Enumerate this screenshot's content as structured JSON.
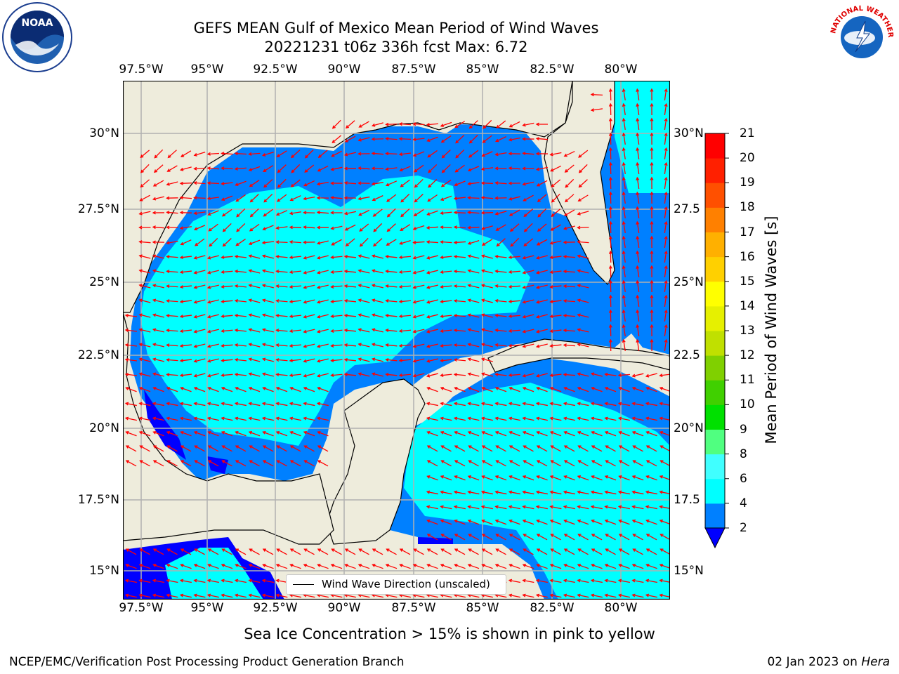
{
  "title": {
    "line1": "GEFS MEAN Gulf of Mexico Mean Period of Wind Waves",
    "line2": "20221231 t06z 336h fcst   Max: 6.72"
  },
  "axes": {
    "lon_labels": [
      "97.5°W",
      "95°W",
      "92.5°W",
      "90°W",
      "87.5°W",
      "85°W",
      "82.5°W",
      "80°W"
    ],
    "lat_labels_left": [
      "30°N",
      "27.5°N",
      "25°N",
      "22.5°N",
      "20°N",
      "17.5°N",
      "15°N"
    ],
    "lat_labels_right": [
      "30°N",
      "27.5",
      "25°N",
      "22.5",
      "20°N",
      "17.5",
      "15°N"
    ]
  },
  "colorbar": {
    "label": "Mean Period of Wind Waves [s]",
    "ticks": [
      "2",
      "4",
      "6",
      "8",
      "9",
      "10",
      "11",
      "12",
      "13",
      "14",
      "15",
      "16",
      "17",
      "18",
      "19",
      "20",
      "21"
    ],
    "colors": [
      "#0080ff",
      "#00ffff",
      "#40ffff",
      "#80ffff",
      "#a8ffe8",
      "#50ff80",
      "#00e000",
      "#40d000",
      "#80d000",
      "#c0e000",
      "#e6f000",
      "#ffff00",
      "#ffd000",
      "#ffb000",
      "#ff8000",
      "#ff5000",
      "#ff2000",
      "#ff0000"
    ],
    "under_color": "#0000ff"
  },
  "legend": {
    "label": "Wind Wave Direction (unscaled)"
  },
  "sea_ice_note": "Sea Ice Concentration > 15% is shown in pink to yellow",
  "footer": {
    "left": "NCEP/EMC/Verification Post Processing Product Generation Branch",
    "right_prefix": "02 Jan 2023 on ",
    "right_machine": "Hera"
  },
  "logos": {
    "noaa": "NOAA",
    "nws": "NATIONAL WEATHER SERVICE"
  },
  "map_colors": {
    "land": "#eeecdc",
    "water_low": "#0080ff",
    "water_mid": "#00ffff",
    "water_deep": "#0000ff",
    "arrow": "#ff0000",
    "grid": "#b0b0b0"
  }
}
